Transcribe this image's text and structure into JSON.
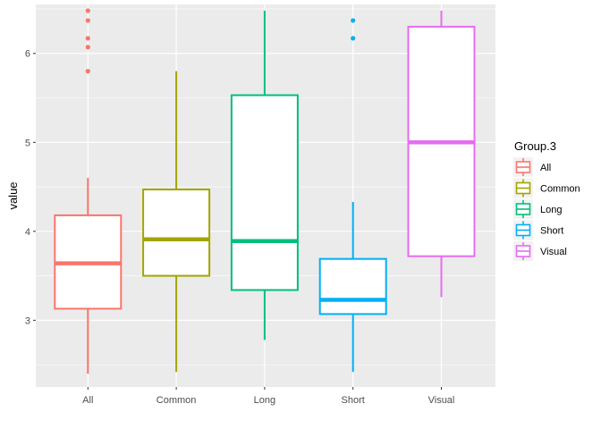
{
  "chart_data": {
    "type": "boxplot",
    "xlabel": "",
    "ylabel": "value",
    "ylim": [
      2.25,
      6.55
    ],
    "y_ticks": [
      3,
      4,
      5,
      6
    ],
    "grid": true,
    "legend": {
      "title": "Group.3",
      "placement": "right"
    },
    "categories": [
      "All",
      "Common",
      "Long",
      "Short",
      "Visual"
    ],
    "colors": [
      "#F8766D",
      "#A3A500",
      "#00BF7D",
      "#00B0F6",
      "#E76BF3"
    ],
    "boxes": [
      {
        "name": "All",
        "whisker_low": 2.4,
        "q1": 3.13,
        "median": 3.64,
        "q3": 4.18,
        "whisker_high": 4.6,
        "outliers": [
          5.8,
          6.07,
          6.17,
          6.37,
          6.48
        ]
      },
      {
        "name": "Common",
        "whisker_low": 2.42,
        "q1": 3.5,
        "median": 3.91,
        "q3": 4.47,
        "whisker_high": 5.8,
        "outliers": []
      },
      {
        "name": "Long",
        "whisker_low": 2.78,
        "q1": 3.34,
        "median": 3.89,
        "q3": 5.53,
        "whisker_high": 6.48,
        "outliers": []
      },
      {
        "name": "Short",
        "whisker_low": 2.42,
        "q1": 3.07,
        "median": 3.23,
        "q3": 3.69,
        "whisker_high": 4.33,
        "outliers": [
          6.17,
          6.37
        ]
      },
      {
        "name": "Visual",
        "whisker_low": 3.26,
        "q1": 3.72,
        "median": 5.0,
        "q3": 6.3,
        "whisker_high": 6.48,
        "outliers": []
      }
    ]
  }
}
